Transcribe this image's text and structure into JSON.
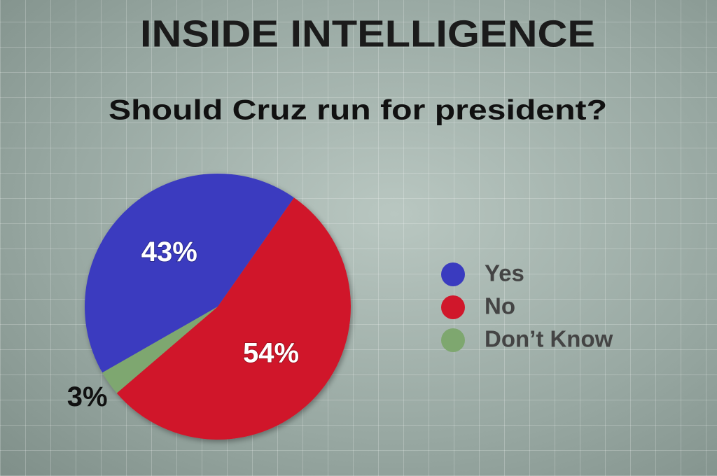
{
  "chart_data": {
    "type": "pie",
    "title": "INSIDE INTELLIGENCE",
    "subtitle": "Should Cruz run for president?",
    "categories": [
      "Yes",
      "No",
      "Don’t Know"
    ],
    "values": [
      43,
      54,
      3
    ],
    "value_labels": [
      "43%",
      "54%",
      "3%"
    ],
    "colors": [
      "#3a3bbf",
      "#d0172b",
      "#7ea76f"
    ],
    "legend": "right"
  }
}
